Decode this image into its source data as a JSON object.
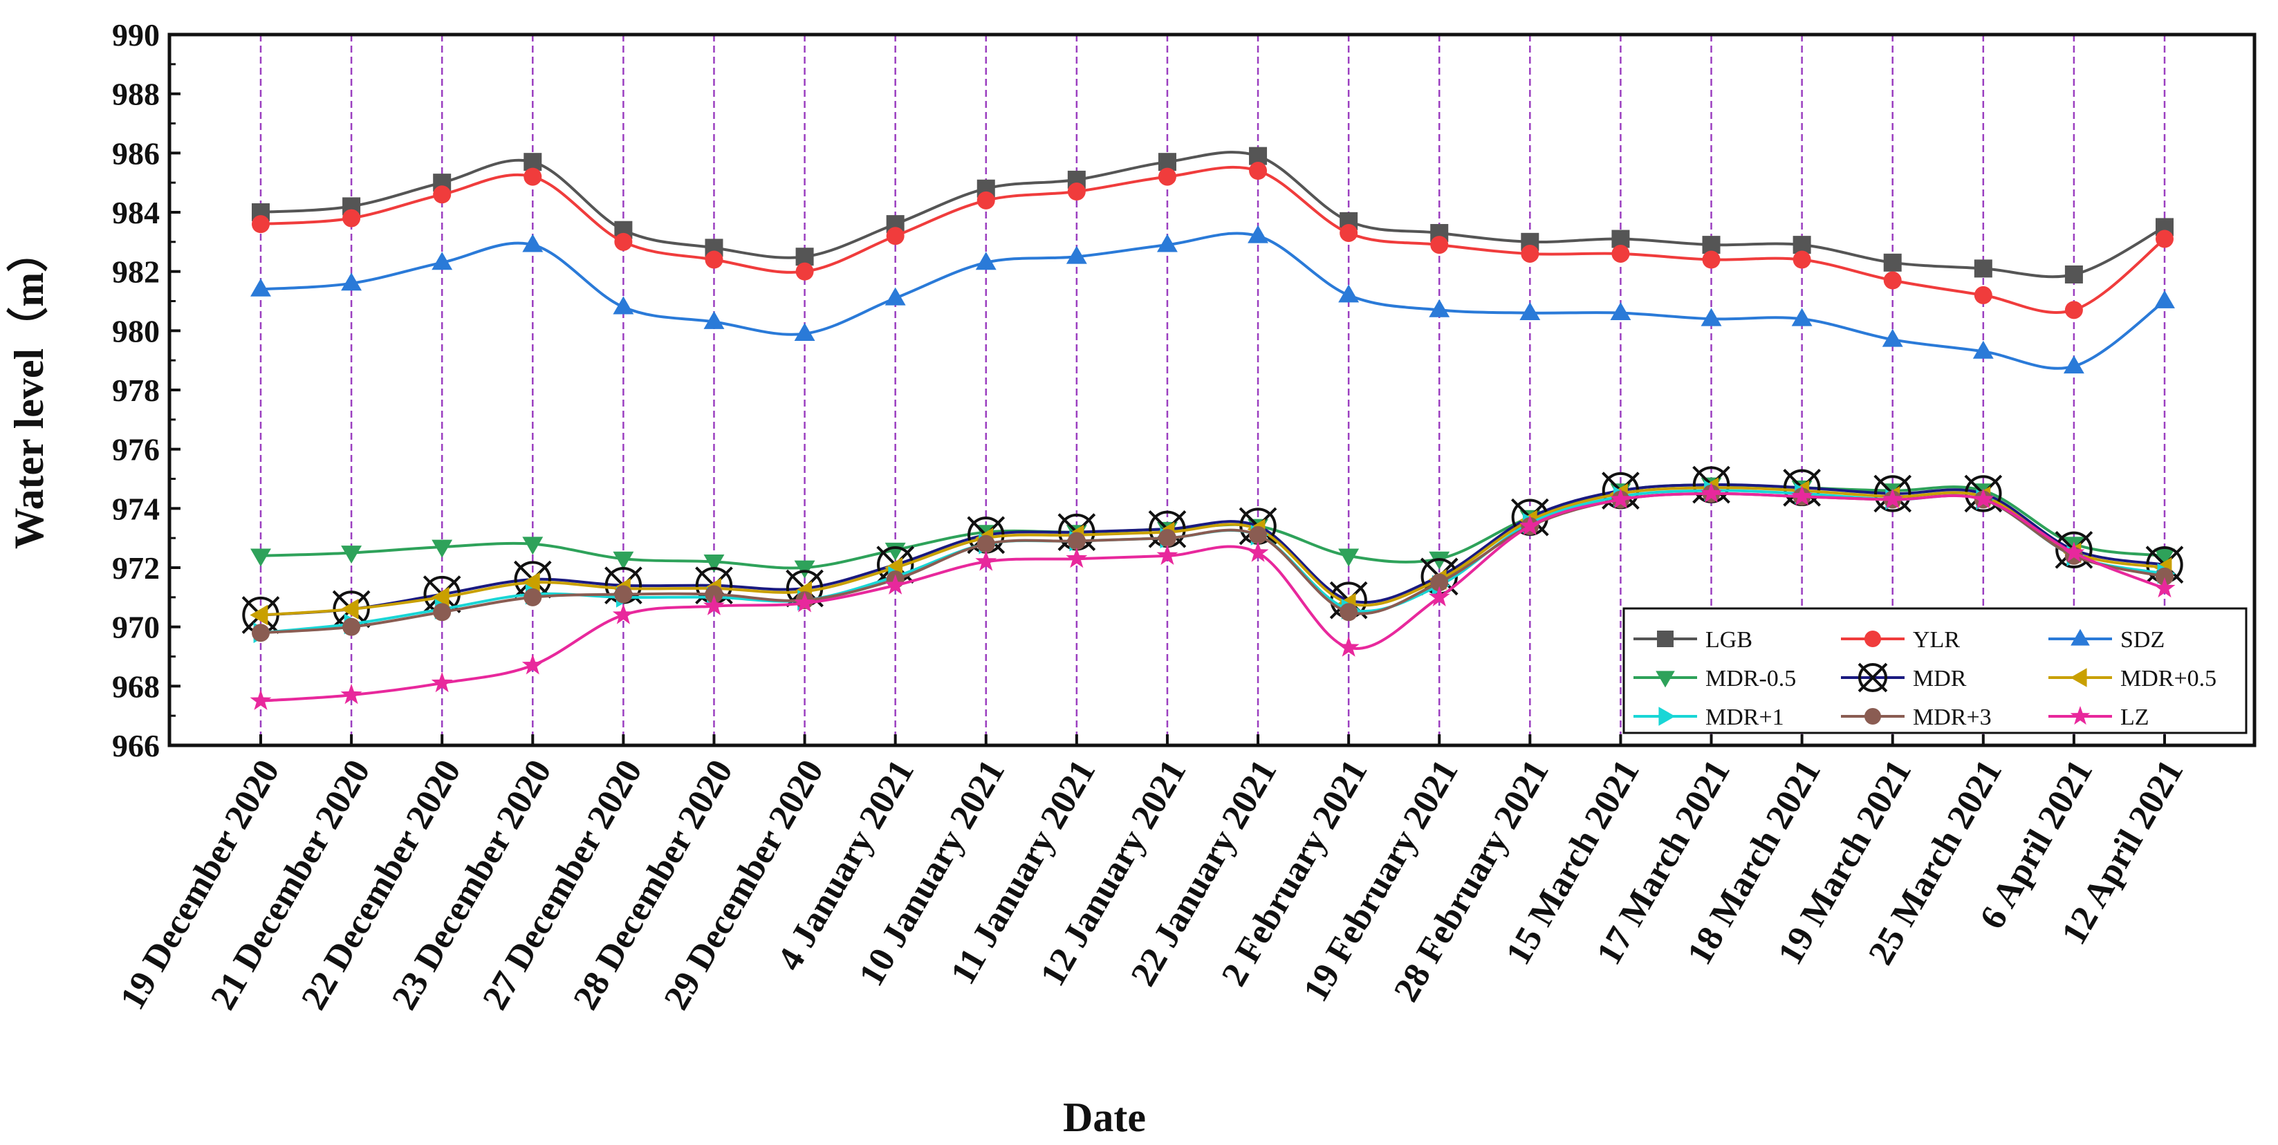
{
  "chart_data": {
    "type": "line",
    "title": "",
    "xlabel": "Date",
    "ylabel": "Water level（m）",
    "ylim": [
      966,
      990
    ],
    "yticks": [
      966,
      968,
      970,
      972,
      974,
      976,
      978,
      980,
      982,
      984,
      986,
      988,
      990
    ],
    "grid": "vertical dashed purple lines at each date",
    "legend_position": "bottom-right",
    "categories": [
      "19 December 2020",
      "21 December 2020",
      "22 December 2020",
      "23 December 2020",
      "27 December 2020",
      "28 December 2020",
      "29 December 2020",
      "4 January 2021",
      "10 January 2021",
      "11 January 2021",
      "12 January 2021",
      "22 January 2021",
      "2 February 2021",
      "19 February 2021",
      "28 February 2021",
      "15 March 2021",
      "17 March 2021",
      "18 March 2021",
      "19 March 2021",
      "25 March 2021",
      "6 April 2021",
      "12 April 2021"
    ],
    "series": [
      {
        "name": "LGB",
        "color": "#555555",
        "marker": "square",
        "values": [
          984.0,
          984.2,
          985.0,
          985.7,
          983.4,
          982.8,
          982.5,
          983.6,
          984.8,
          985.1,
          985.7,
          985.9,
          983.7,
          983.3,
          983.0,
          983.1,
          982.9,
          982.9,
          982.3,
          982.1,
          981.9,
          983.5
        ]
      },
      {
        "name": "YLR",
        "color": "#f03c3c",
        "marker": "circle",
        "values": [
          983.6,
          983.8,
          984.6,
          985.2,
          983.0,
          982.4,
          982.0,
          983.2,
          984.4,
          984.7,
          985.2,
          985.4,
          983.3,
          982.9,
          982.6,
          982.6,
          982.4,
          982.4,
          981.7,
          981.2,
          980.7,
          983.1
        ]
      },
      {
        "name": "SDZ",
        "color": "#2a7ad8",
        "marker": "triangle-up",
        "values": [
          981.4,
          981.6,
          982.3,
          982.9,
          980.8,
          980.3,
          979.9,
          981.1,
          982.3,
          982.5,
          982.9,
          983.2,
          981.2,
          980.7,
          980.6,
          980.6,
          980.4,
          980.4,
          979.7,
          979.3,
          978.8,
          981.0
        ]
      },
      {
        "name": "MDR-0.5",
        "color": "#2ea25a",
        "marker": "triangle-down",
        "values": [
          972.4,
          972.5,
          972.7,
          972.8,
          972.3,
          972.2,
          972.0,
          972.6,
          973.2,
          973.2,
          973.3,
          973.4,
          972.4,
          972.3,
          973.7,
          974.6,
          974.8,
          974.7,
          974.6,
          974.6,
          972.8,
          972.4
        ]
      },
      {
        "name": "MDR",
        "color": "#1a1a80",
        "marker": "circle-x",
        "values": [
          970.4,
          970.6,
          971.1,
          971.6,
          971.4,
          971.4,
          971.3,
          972.1,
          973.1,
          973.2,
          973.3,
          973.4,
          970.9,
          971.7,
          973.7,
          974.6,
          974.8,
          974.7,
          974.5,
          974.5,
          972.6,
          972.1
        ]
      },
      {
        "name": "MDR+0.5",
        "color": "#c9a000",
        "marker": "triangle-left",
        "values": [
          970.4,
          970.6,
          971.0,
          971.5,
          971.3,
          971.3,
          971.2,
          972.0,
          973.0,
          973.1,
          973.2,
          973.3,
          970.8,
          971.6,
          973.6,
          974.5,
          974.7,
          974.6,
          974.4,
          974.4,
          972.5,
          972.0
        ]
      },
      {
        "name": "MDR+1",
        "color": "#19d6d6",
        "marker": "triangle-right",
        "values": [
          969.8,
          970.1,
          970.6,
          971.1,
          971.0,
          971.0,
          970.9,
          971.7,
          972.8,
          972.9,
          973.0,
          973.1,
          970.6,
          971.4,
          973.5,
          974.4,
          974.6,
          974.5,
          974.3,
          974.3,
          972.4,
          971.8
        ]
      },
      {
        "name": "MDR+3",
        "color": "#8a5c52",
        "marker": "circle",
        "values": [
          969.8,
          970.0,
          970.5,
          971.0,
          971.1,
          971.1,
          970.9,
          971.6,
          972.8,
          972.9,
          973.0,
          973.1,
          970.5,
          971.5,
          973.4,
          974.3,
          974.5,
          974.4,
          974.3,
          974.3,
          972.4,
          971.7
        ]
      },
      {
        "name": "LZ",
        "color": "#e8289c",
        "marker": "star",
        "values": [
          967.5,
          967.7,
          968.1,
          968.7,
          970.4,
          970.7,
          970.8,
          971.4,
          972.2,
          972.3,
          972.4,
          972.5,
          969.3,
          971.0,
          973.4,
          974.3,
          974.5,
          974.4,
          974.3,
          974.3,
          972.5,
          971.3
        ]
      }
    ]
  }
}
